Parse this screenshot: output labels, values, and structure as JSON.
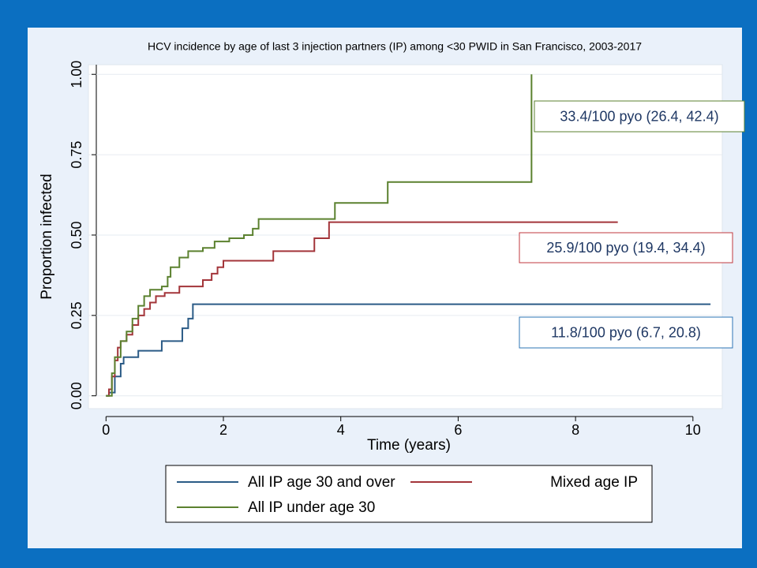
{
  "chart_data": {
    "type": "step",
    "title": "HCV incidence by age of last 3 injection partners (IP) among <30 PWID in San Francisco, 2003-2017",
    "x_label": "Time (years)",
    "y_label": "Proportion infected",
    "xlim": [
      -0.3,
      10.5
    ],
    "ylim": [
      -0.04,
      1.03
    ],
    "xticks": [
      0,
      2,
      4,
      6,
      8,
      10
    ],
    "yticks": [
      {
        "value": 0,
        "label": "0.00"
      },
      {
        "value": 0.25,
        "label": "0.25"
      },
      {
        "value": 0.5,
        "label": "0.50"
      },
      {
        "value": 0.75,
        "label": "0.75"
      },
      {
        "value": 1,
        "label": "1.00"
      }
    ],
    "grid": true,
    "series": [
      {
        "name": "All IP age 30 and over",
        "color": "#2b5b86",
        "x": [
          0,
          0.05,
          0.15,
          0.25,
          0.3,
          0.55,
          0.95,
          1.3,
          1.4,
          1.48,
          10.3
        ],
        "values": [
          0,
          0.01,
          0.06,
          0.1,
          0.12,
          0.14,
          0.17,
          0.21,
          0.24,
          0.285,
          0.285
        ]
      },
      {
        "name": "Mixed age IP",
        "color": "#a3353a",
        "x": [
          0,
          0.05,
          0.1,
          0.15,
          0.2,
          0.25,
          0.35,
          0.45,
          0.55,
          0.65,
          0.75,
          0.85,
          1.0,
          1.25,
          1.65,
          1.8,
          1.9,
          2.0,
          2.85,
          3.55,
          3.8,
          8.72
        ],
        "values": [
          0,
          0.02,
          0.06,
          0.11,
          0.15,
          0.17,
          0.19,
          0.22,
          0.25,
          0.27,
          0.29,
          0.31,
          0.32,
          0.34,
          0.36,
          0.38,
          0.4,
          0.42,
          0.45,
          0.49,
          0.54,
          0.54
        ]
      },
      {
        "name": "All IP under age 30",
        "color": "#5b812f",
        "x": [
          0,
          0.1,
          0.15,
          0.25,
          0.35,
          0.45,
          0.55,
          0.65,
          0.75,
          0.95,
          1.05,
          1.1,
          1.25,
          1.4,
          1.65,
          1.85,
          2.1,
          2.35,
          2.5,
          2.6,
          3.9,
          4.8,
          7.25
        ],
        "values": [
          0,
          0.07,
          0.12,
          0.17,
          0.2,
          0.24,
          0.28,
          0.31,
          0.33,
          0.34,
          0.37,
          0.4,
          0.43,
          0.45,
          0.46,
          0.48,
          0.49,
          0.5,
          0.52,
          0.55,
          0.6,
          0.665,
          1.0
        ]
      }
    ],
    "annotations": [
      {
        "text": "11.8/100 pyo (6.7, 20.8)",
        "color": "#2e75b6"
      },
      {
        "text": "25.9/100 pyo (19.4, 34.4)",
        "color": "#c0393f"
      },
      {
        "text": "33.4/100 pyo (26.4, 42.4)",
        "color": "#5b812f"
      }
    ]
  }
}
